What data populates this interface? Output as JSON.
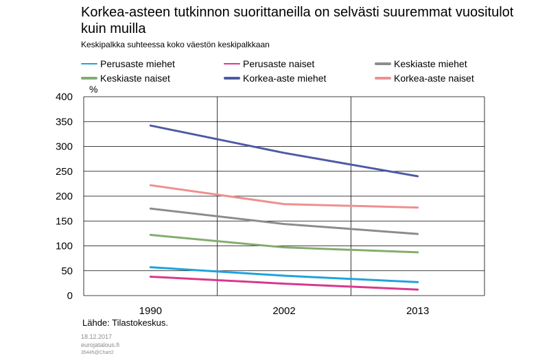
{
  "header": {
    "title": "Korkea-asteen tutkinnon suorittaneilla on selvästi suuremmat vuositulot kuin muilla",
    "subtitle": "Keskipalkka suhteessa koko väestön keskipalkkaan"
  },
  "footer": {
    "source": "Lähde: Tilastokeskus.",
    "date": "18.12.2017",
    "site": "eurojatalous.fi",
    "chart_id": "35445@Chart2"
  },
  "chart_data": {
    "type": "line",
    "title": "Korkea-asteen tutkinnon suorittaneilla on selvästi suuremmat vuositulot kuin muilla",
    "subtitle": "Keskipalkka suhteessa koko väestön keskipalkkaan",
    "ylabel": "%",
    "xlabel": "",
    "categories": [
      "1990",
      "2002",
      "2013"
    ],
    "ylim": [
      0,
      400
    ],
    "yticks": [
      0,
      50,
      100,
      150,
      200,
      250,
      300,
      350,
      400
    ],
    "grid": true,
    "legend_position": "top",
    "series": [
      {
        "name": "Perusaste miehet",
        "color": "#1ea3dc",
        "values": [
          57,
          40,
          27
        ]
      },
      {
        "name": "Perusaste naiset",
        "color": "#d8388a",
        "values": [
          38,
          24,
          12
        ]
      },
      {
        "name": "Keskiaste miehet",
        "color": "#8c8c8c",
        "values": [
          175,
          144,
          124
        ]
      },
      {
        "name": "Keskiaste naiset",
        "color": "#82ad6e",
        "values": [
          122,
          97,
          87
        ]
      },
      {
        "name": "Korkea-aste miehet",
        "color": "#4e5aa6",
        "values": [
          342,
          287,
          240
        ]
      },
      {
        "name": "Korkea-aste naiset",
        "color": "#ef8f8f",
        "values": [
          222,
          184,
          177
        ]
      }
    ]
  }
}
